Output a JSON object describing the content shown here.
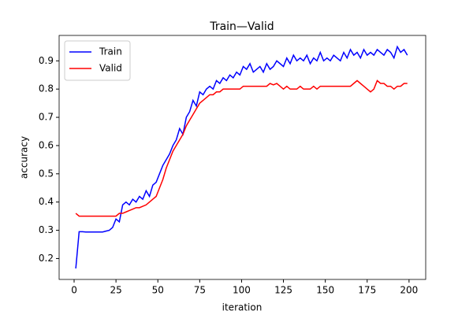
{
  "chart_data": {
    "type": "line",
    "title": "Train—Valid",
    "x_label": "iteration",
    "y_label": "accuracy",
    "x": [
      1,
      3,
      5,
      7,
      9,
      11,
      13,
      15,
      17,
      19,
      21,
      23,
      25,
      27,
      29,
      31,
      33,
      35,
      37,
      39,
      41,
      43,
      45,
      47,
      49,
      51,
      53,
      55,
      57,
      59,
      61,
      63,
      65,
      67,
      69,
      71,
      73,
      75,
      77,
      79,
      81,
      83,
      85,
      87,
      89,
      91,
      93,
      95,
      97,
      99,
      101,
      103,
      105,
      107,
      109,
      111,
      113,
      115,
      117,
      119,
      121,
      123,
      125,
      127,
      129,
      131,
      133,
      135,
      137,
      139,
      141,
      143,
      145,
      147,
      149,
      151,
      153,
      155,
      157,
      159,
      161,
      163,
      165,
      167,
      169,
      171,
      173,
      175,
      177,
      179,
      181,
      183,
      185,
      187,
      189,
      191,
      193,
      195,
      197,
      199
    ],
    "series": [
      {
        "name": "Train",
        "color": "#0000ff",
        "values": [
          0.165,
          0.295,
          0.295,
          0.294,
          0.294,
          0.294,
          0.294,
          0.294,
          0.294,
          0.297,
          0.3,
          0.31,
          0.34,
          0.33,
          0.39,
          0.4,
          0.39,
          0.41,
          0.4,
          0.42,
          0.41,
          0.44,
          0.42,
          0.46,
          0.47,
          0.5,
          0.53,
          0.55,
          0.57,
          0.6,
          0.62,
          0.66,
          0.64,
          0.7,
          0.72,
          0.76,
          0.74,
          0.79,
          0.78,
          0.8,
          0.81,
          0.8,
          0.83,
          0.82,
          0.84,
          0.83,
          0.85,
          0.84,
          0.86,
          0.85,
          0.88,
          0.87,
          0.89,
          0.86,
          0.87,
          0.88,
          0.86,
          0.89,
          0.87,
          0.88,
          0.9,
          0.89,
          0.88,
          0.91,
          0.89,
          0.92,
          0.9,
          0.91,
          0.9,
          0.92,
          0.89,
          0.91,
          0.9,
          0.93,
          0.9,
          0.91,
          0.9,
          0.92,
          0.91,
          0.9,
          0.93,
          0.91,
          0.94,
          0.92,
          0.93,
          0.91,
          0.94,
          0.92,
          0.93,
          0.92,
          0.94,
          0.93,
          0.92,
          0.94,
          0.93,
          0.91,
          0.95,
          0.93,
          0.94,
          0.92
        ]
      },
      {
        "name": "Valid",
        "color": "#ff0000",
        "values": [
          0.36,
          0.35,
          0.35,
          0.35,
          0.35,
          0.35,
          0.35,
          0.35,
          0.35,
          0.35,
          0.35,
          0.35,
          0.35,
          0.36,
          0.36,
          0.365,
          0.37,
          0.375,
          0.38,
          0.38,
          0.385,
          0.39,
          0.4,
          0.41,
          0.42,
          0.45,
          0.48,
          0.52,
          0.55,
          0.58,
          0.6,
          0.62,
          0.64,
          0.67,
          0.69,
          0.71,
          0.73,
          0.75,
          0.76,
          0.77,
          0.78,
          0.78,
          0.79,
          0.79,
          0.8,
          0.8,
          0.8,
          0.8,
          0.8,
          0.8,
          0.81,
          0.81,
          0.81,
          0.81,
          0.81,
          0.81,
          0.81,
          0.81,
          0.82,
          0.815,
          0.82,
          0.81,
          0.8,
          0.81,
          0.8,
          0.8,
          0.8,
          0.81,
          0.8,
          0.8,
          0.8,
          0.81,
          0.8,
          0.81,
          0.81,
          0.81,
          0.81,
          0.81,
          0.81,
          0.81,
          0.81,
          0.81,
          0.81,
          0.82,
          0.83,
          0.82,
          0.81,
          0.8,
          0.79,
          0.8,
          0.83,
          0.82,
          0.82,
          0.81,
          0.81,
          0.8,
          0.81,
          0.81,
          0.82,
          0.82
        ]
      }
    ],
    "xlim": [
      -8.95,
      209.95
    ],
    "xticks": [
      0,
      25,
      50,
      75,
      100,
      125,
      150,
      175,
      200
    ],
    "ylim": [
      0.126,
      0.99
    ],
    "yticks": [
      0.2,
      0.3,
      0.4,
      0.5,
      0.6,
      0.7,
      0.8,
      0.9
    ],
    "legend": "upper left"
  }
}
